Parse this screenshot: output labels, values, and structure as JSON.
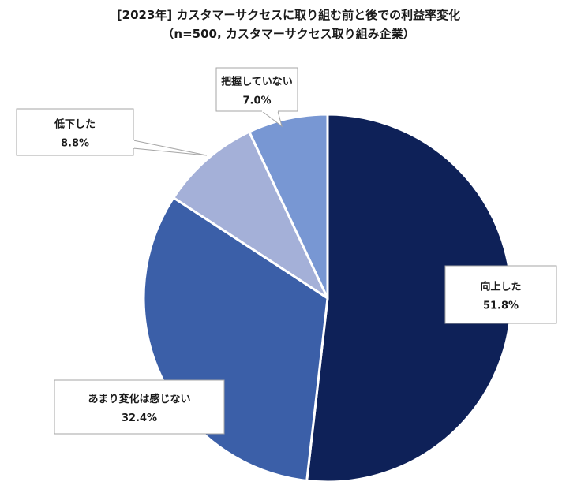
{
  "chart_data": {
    "type": "pie",
    "title": "[2023年] カスタマーサクセスに取り組む前と後での利益率変化",
    "subtitle": "（n=500, カスタマーサクセス取り組み企業）",
    "slices": [
      {
        "label": "向上した",
        "value": 51.8,
        "value_label": "51.8%",
        "color": "#0e2158"
      },
      {
        "label": "あまり変化は感じない",
        "value": 32.4,
        "value_label": "32.4%",
        "color": "#3b5fa8"
      },
      {
        "label": "低下した",
        "value": 8.8,
        "value_label": "8.8%",
        "color": "#a4b0d8"
      },
      {
        "label": "把握していない",
        "value": 7.0,
        "value_label": "7.0%",
        "color": "#7897d3"
      }
    ],
    "start_angle": "12 o'clock",
    "direction": "clockwise",
    "legend": "none"
  }
}
